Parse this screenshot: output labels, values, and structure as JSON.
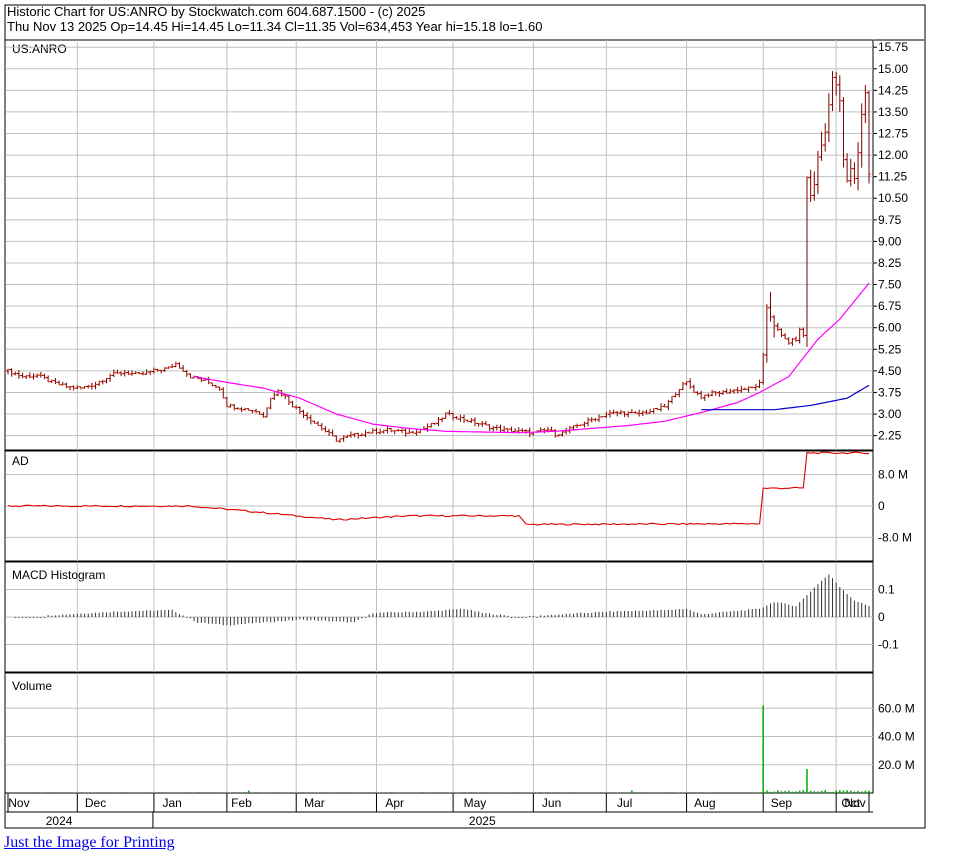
{
  "header": {
    "line1": "Historic Chart for US:ANRO by Stockwatch.com 604.687.1500 - (c) 2025",
    "line2": "Thu Nov 13 2025   Op=14.45   Hi=14.45   Lo=11.34   Cl=11.35   Vol=634,453   Year hi=15.18   lo=1.60"
  },
  "link_text": "Just the Image for Printing",
  "colors": {
    "price_bars": "#7a0000",
    "ma_short": "#ff00ff",
    "ma_long": "#0000cc",
    "ad_line": "#dd0000",
    "volume_bars": "#00aa00",
    "grid": "#c0c0c0",
    "border": "#000000"
  },
  "x_axis": {
    "months": [
      "Nov",
      "Dec",
      "Jan",
      "Feb",
      "Mar",
      "Apr",
      "May",
      "Jun",
      "Jul",
      "Aug",
      "Sep",
      "Oct",
      "Nov"
    ],
    "years": [
      "2024",
      "2025"
    ]
  },
  "chart_data": [
    {
      "type": "line",
      "panel": "price",
      "label": "US:ANRO",
      "ylim": [
        1.75,
        16.0
      ],
      "yticks": [
        "15.75",
        "15.00",
        "14.25",
        "13.50",
        "12.75",
        "12.00",
        "11.25",
        "10.50",
        "9.75",
        "9.00",
        "8.25",
        "7.50",
        "6.75",
        "6.00",
        "5.25",
        "4.50",
        "3.75",
        "3.00",
        "2.25"
      ],
      "x_unit": "trading day index (0 = start of Nov 2024)",
      "price_anchors": [
        [
          0,
          4.5
        ],
        [
          4,
          4.3
        ],
        [
          8,
          4.35
        ],
        [
          12,
          4.1
        ],
        [
          16,
          3.95
        ],
        [
          20,
          3.9
        ],
        [
          24,
          4.05
        ],
        [
          28,
          4.35
        ],
        [
          32,
          4.45
        ],
        [
          36,
          4.35
        ],
        [
          40,
          4.5
        ],
        [
          44,
          4.6
        ],
        [
          46,
          4.75
        ],
        [
          50,
          4.3
        ],
        [
          54,
          4.15
        ],
        [
          58,
          3.9
        ],
        [
          60,
          3.3
        ],
        [
          64,
          3.2
        ],
        [
          68,
          3.1
        ],
        [
          70,
          2.9
        ],
        [
          72,
          3.6
        ],
        [
          74,
          3.8
        ],
        [
          76,
          3.6
        ],
        [
          78,
          3.3
        ],
        [
          80,
          3.1
        ],
        [
          84,
          2.7
        ],
        [
          88,
          2.3
        ],
        [
          90,
          2.1
        ],
        [
          94,
          2.25
        ],
        [
          98,
          2.35
        ],
        [
          104,
          2.45
        ],
        [
          110,
          2.35
        ],
        [
          114,
          2.5
        ],
        [
          118,
          2.75
        ],
        [
          120,
          3.0
        ],
        [
          124,
          2.85
        ],
        [
          128,
          2.7
        ],
        [
          132,
          2.55
        ],
        [
          136,
          2.45
        ],
        [
          140,
          2.4
        ],
        [
          144,
          2.35
        ],
        [
          148,
          2.45
        ],
        [
          150,
          2.3
        ],
        [
          152,
          2.35
        ],
        [
          156,
          2.6
        ],
        [
          160,
          2.8
        ],
        [
          164,
          3.0
        ],
        [
          168,
          3.05
        ],
        [
          172,
          3.0
        ],
        [
          176,
          3.1
        ],
        [
          180,
          3.25
        ],
        [
          184,
          3.9
        ],
        [
          186,
          4.1
        ],
        [
          188,
          3.8
        ],
        [
          190,
          3.6
        ],
        [
          192,
          3.7
        ],
        [
          196,
          3.75
        ],
        [
          200,
          3.85
        ],
        [
          204,
          3.9
        ],
        [
          206,
          4.05
        ],
        [
          207,
          5.0
        ],
        [
          208,
          6.7
        ],
        [
          210,
          6.1
        ],
        [
          212,
          5.7
        ],
        [
          214,
          5.5
        ],
        [
          216,
          5.6
        ],
        [
          217,
          5.9
        ],
        [
          218,
          5.75
        ],
        [
          219,
          11.2
        ],
        [
          220,
          10.6
        ],
        [
          221,
          11.0
        ],
        [
          222,
          11.9
        ],
        [
          224,
          12.8
        ],
        [
          225,
          13.8
        ],
        [
          226,
          14.7
        ],
        [
          227,
          14.4
        ],
        [
          228,
          13.9
        ],
        [
          229,
          11.8
        ],
        [
          230,
          11.1
        ],
        [
          231,
          11.5
        ],
        [
          232,
          11.2
        ],
        [
          233,
          12.1
        ],
        [
          234,
          13.4
        ],
        [
          235,
          14.2
        ],
        [
          236,
          11.35
        ]
      ],
      "ma_short_anchors": [
        [
          51,
          4.3
        ],
        [
          60,
          4.1
        ],
        [
          70,
          3.9
        ],
        [
          80,
          3.55
        ],
        [
          90,
          3.0
        ],
        [
          100,
          2.65
        ],
        [
          110,
          2.5
        ],
        [
          120,
          2.4
        ],
        [
          140,
          2.35
        ],
        [
          150,
          2.4
        ],
        [
          160,
          2.5
        ],
        [
          170,
          2.6
        ],
        [
          180,
          2.75
        ],
        [
          190,
          3.05
        ],
        [
          200,
          3.4
        ],
        [
          206,
          3.75
        ],
        [
          214,
          4.3
        ],
        [
          222,
          5.6
        ],
        [
          228,
          6.3
        ],
        [
          236,
          7.55
        ]
      ],
      "ma_long_anchors": [
        [
          190,
          3.15
        ],
        [
          200,
          3.15
        ],
        [
          210,
          3.15
        ],
        [
          220,
          3.3
        ],
        [
          230,
          3.55
        ],
        [
          236,
          4.0
        ]
      ]
    },
    {
      "type": "line",
      "panel": "ad",
      "label": "AD",
      "ylim": [
        -14,
        14
      ],
      "yticks": [
        "8.0 M",
        "0",
        "-8.0 M"
      ],
      "anchors": [
        [
          0,
          0
        ],
        [
          50,
          0
        ],
        [
          68,
          -1.5
        ],
        [
          90,
          -3.5
        ],
        [
          110,
          -2.5
        ],
        [
          140,
          -2.5
        ],
        [
          142,
          -4.7
        ],
        [
          206,
          -4.5
        ],
        [
          207,
          4.5
        ],
        [
          218,
          4.6
        ],
        [
          219,
          13.5
        ],
        [
          236,
          13.5
        ]
      ]
    },
    {
      "type": "bar",
      "panel": "macd",
      "label": "MACD Histogram",
      "ylim": [
        -0.2,
        0.2
      ],
      "yticks": [
        "0.1",
        "0",
        "-0.1"
      ],
      "anchors": [
        [
          0,
          0
        ],
        [
          10,
          0.005
        ],
        [
          30,
          0.02
        ],
        [
          45,
          0.025
        ],
        [
          52,
          -0.02
        ],
        [
          60,
          -0.03
        ],
        [
          70,
          -0.02
        ],
        [
          80,
          -0.01
        ],
        [
          95,
          -0.02
        ],
        [
          100,
          0.015
        ],
        [
          115,
          0.02
        ],
        [
          125,
          0.03
        ],
        [
          130,
          0.015
        ],
        [
          140,
          0
        ],
        [
          152,
          0.01
        ],
        [
          165,
          0.02
        ],
        [
          180,
          0.025
        ],
        [
          186,
          0.03
        ],
        [
          190,
          0.01
        ],
        [
          206,
          0.03
        ],
        [
          210,
          0.055
        ],
        [
          216,
          0.04
        ],
        [
          219,
          0.08
        ],
        [
          222,
          0.12
        ],
        [
          225,
          0.155
        ],
        [
          228,
          0.11
        ],
        [
          232,
          0.06
        ],
        [
          236,
          0.04
        ]
      ]
    },
    {
      "type": "bar",
      "panel": "volume",
      "label": "Volume",
      "ylim": [
        0,
        85
      ],
      "unit": "M",
      "yticks": [
        "60.0 M",
        "40.0 M",
        "20.0 M"
      ],
      "spikes": [
        [
          207,
          62
        ],
        [
          219,
          17
        ]
      ]
    }
  ]
}
